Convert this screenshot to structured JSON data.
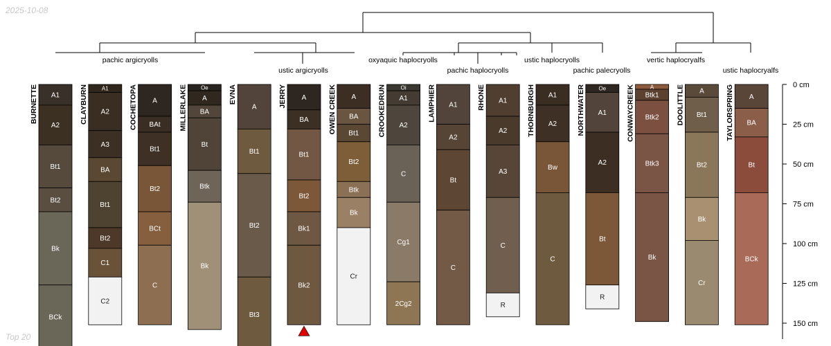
{
  "date": "2025-10-08",
  "footer": "Top 20",
  "depth_axis": {
    "unit": "cm",
    "max": 160,
    "ticks": [
      {
        "value": 0,
        "label": "0 cm"
      },
      {
        "value": 25,
        "label": "25 cm"
      },
      {
        "value": 50,
        "label": "50 cm"
      },
      {
        "value": 75,
        "label": "75 cm"
      },
      {
        "value": 100,
        "label": "100 cm"
      },
      {
        "value": 125,
        "label": "125 cm"
      },
      {
        "value": 150,
        "label": "150 cm"
      }
    ]
  },
  "groups": [
    {
      "label": "pachic argicryolls"
    },
    {
      "label": "ustic argicryolls"
    },
    {
      "label": "oxyaquic haplocryolls"
    },
    {
      "label": "pachic haplocryolls"
    },
    {
      "label": "ustic haplocryolls"
    },
    {
      "label": "pachic palecryolls"
    },
    {
      "label": "vertic haplocryalfs"
    },
    {
      "label": "ustic haplocryalfs"
    }
  ],
  "profiles": [
    {
      "name": "BURNETTE",
      "marker": false,
      "horizons": [
        {
          "name": "A1",
          "top": 0,
          "bottom": 13,
          "color": "#3a302a"
        },
        {
          "name": "A2",
          "top": 13,
          "bottom": 38,
          "color": "#3c3022"
        },
        {
          "name": "Bt1",
          "top": 38,
          "bottom": 65,
          "color": "#564a3c"
        },
        {
          "name": "Bt2",
          "top": 65,
          "bottom": 80,
          "color": "#5a4e40"
        },
        {
          "name": "Bk",
          "top": 80,
          "bottom": 126,
          "color": "#6a6658"
        },
        {
          "name": "BCk",
          "top": 126,
          "bottom": 166,
          "color": "#6a6658"
        }
      ]
    },
    {
      "name": "CLAYBURN",
      "marker": false,
      "horizons": [
        {
          "name": "A1",
          "top": 0,
          "bottom": 5,
          "color": "#30261c"
        },
        {
          "name": "A2",
          "top": 5,
          "bottom": 29,
          "color": "#3a2e22"
        },
        {
          "name": "A3",
          "top": 29,
          "bottom": 46,
          "color": "#3c3024"
        },
        {
          "name": "BA",
          "top": 46,
          "bottom": 61,
          "color": "#5a4832"
        },
        {
          "name": "Bt1",
          "top": 61,
          "bottom": 90,
          "color": "#4e4230"
        },
        {
          "name": "Bt2",
          "top": 90,
          "bottom": 103,
          "color": "#4e3828"
        },
        {
          "name": "C1",
          "top": 103,
          "bottom": 121,
          "color": "#6a5238"
        },
        {
          "name": "C2",
          "top": 121,
          "bottom": 151,
          "color": "#f2f2f2"
        }
      ]
    },
    {
      "name": "COCHETOPA",
      "marker": false,
      "horizons": [
        {
          "name": "A",
          "top": 0,
          "bottom": 20,
          "color": "#2e2620"
        },
        {
          "name": "BAt",
          "top": 20,
          "bottom": 30,
          "color": "#3a2e24"
        },
        {
          "name": "Bt1",
          "top": 30,
          "bottom": 51,
          "color": "#3e3024"
        },
        {
          "name": "Bt2",
          "top": 51,
          "bottom": 80,
          "color": "#7a5638"
        },
        {
          "name": "BCt",
          "top": 80,
          "bottom": 101,
          "color": "#86603e"
        },
        {
          "name": "C",
          "top": 101,
          "bottom": 151,
          "color": "#8e6e50"
        }
      ]
    },
    {
      "name": "MILLERLAKE",
      "marker": false,
      "horizons": [
        {
          "name": "Oe",
          "top": 0,
          "bottom": 4,
          "color": "#2a2420"
        },
        {
          "name": "A",
          "top": 4,
          "bottom": 13,
          "color": "#30281e"
        },
        {
          "name": "BA",
          "top": 13,
          "bottom": 21,
          "color": "#52463a"
        },
        {
          "name": "Bt",
          "top": 21,
          "bottom": 54,
          "color": "#504438"
        },
        {
          "name": "Btk",
          "top": 54,
          "bottom": 74,
          "color": "#6e6458"
        },
        {
          "name": "Bk",
          "top": 74,
          "bottom": 154,
          "color": "#a09078"
        }
      ]
    },
    {
      "name": "EVNA",
      "marker": false,
      "horizons": [
        {
          "name": "A",
          "top": 0,
          "bottom": 28,
          "color": "#52443a"
        },
        {
          "name": "Bt1",
          "top": 28,
          "bottom": 56,
          "color": "#6e5a3e"
        },
        {
          "name": "Bt2",
          "top": 56,
          "bottom": 121,
          "color": "#6a5a4a"
        },
        {
          "name": "Bt3",
          "top": 121,
          "bottom": 168,
          "color": "#6e5a3e"
        }
      ]
    },
    {
      "name": "JERRY",
      "marker": true,
      "horizons": [
        {
          "name": "A",
          "top": 0,
          "bottom": 16,
          "color": "#2e2620"
        },
        {
          "name": "BA",
          "top": 16,
          "bottom": 28,
          "color": "#3c3024"
        },
        {
          "name": "Bt1",
          "top": 28,
          "bottom": 60,
          "color": "#725844"
        },
        {
          "name": "Bt2",
          "top": 60,
          "bottom": 80,
          "color": "#7c5838"
        },
        {
          "name": "Bk1",
          "top": 80,
          "bottom": 101,
          "color": "#6e5844"
        },
        {
          "name": "Bk2",
          "top": 101,
          "bottom": 151,
          "color": "#6e5840"
        }
      ]
    },
    {
      "name": "OWEN CREEK",
      "marker": false,
      "horizons": [
        {
          "name": "A",
          "top": 0,
          "bottom": 15,
          "color": "#3c2e22"
        },
        {
          "name": "BA",
          "top": 15,
          "bottom": 25,
          "color": "#6a5640"
        },
        {
          "name": "Bt1",
          "top": 25,
          "bottom": 36,
          "color": "#5a4834"
        },
        {
          "name": "Bt2",
          "top": 36,
          "bottom": 61,
          "color": "#7e5e38"
        },
        {
          "name": "Btk",
          "top": 61,
          "bottom": 71,
          "color": "#8a7054"
        },
        {
          "name": "Bk",
          "top": 71,
          "bottom": 90,
          "color": "#9a8064"
        },
        {
          "name": "Cr",
          "top": 90,
          "bottom": 151,
          "color": "#f2f2f2"
        }
      ]
    },
    {
      "name": "CROOKEDRUN",
      "marker": false,
      "horizons": [
        {
          "name": "Oi",
          "top": 0,
          "bottom": 4,
          "color": "#3a3630"
        },
        {
          "name": "A1",
          "top": 4,
          "bottom": 13,
          "color": "#443c32"
        },
        {
          "name": "A2",
          "top": 13,
          "bottom": 38,
          "color": "#4e463c"
        },
        {
          "name": "C",
          "top": 38,
          "bottom": 74,
          "color": "#6a6256"
        },
        {
          "name": "Cg1",
          "top": 74,
          "bottom": 124,
          "color": "#8a7a68"
        },
        {
          "name": "2Cg2",
          "top": 124,
          "bottom": 151,
          "color": "#8e7654"
        }
      ]
    },
    {
      "name": "LAMPHIER",
      "marker": false,
      "horizons": [
        {
          "name": "A1",
          "top": 0,
          "bottom": 25,
          "color": "#52443a"
        },
        {
          "name": "A2",
          "top": 25,
          "bottom": 41,
          "color": "#564434"
        },
        {
          "name": "Bt",
          "top": 41,
          "bottom": 79,
          "color": "#5e4634"
        },
        {
          "name": "C",
          "top": 79,
          "bottom": 151,
          "color": "#725a46"
        }
      ]
    },
    {
      "name": "RHONE",
      "marker": false,
      "horizons": [
        {
          "name": "A1",
          "top": 0,
          "bottom": 20,
          "color": "#503e30"
        },
        {
          "name": "A2",
          "top": 20,
          "bottom": 38,
          "color": "#4a3a2c"
        },
        {
          "name": "A3",
          "top": 38,
          "bottom": 71,
          "color": "#574638"
        },
        {
          "name": "C",
          "top": 71,
          "bottom": 131,
          "color": "#705e4e"
        },
        {
          "name": "R",
          "top": 131,
          "bottom": 146,
          "color": "#f2f2f2"
        }
      ]
    },
    {
      "name": "THORNBURGH",
      "marker": false,
      "horizons": [
        {
          "name": "A1",
          "top": 0,
          "bottom": 13,
          "color": "#3a2e22"
        },
        {
          "name": "A2",
          "top": 13,
          "bottom": 36,
          "color": "#3e3024"
        },
        {
          "name": "Bw",
          "top": 36,
          "bottom": 68,
          "color": "#7a5638"
        },
        {
          "name": "C",
          "top": 68,
          "bottom": 151,
          "color": "#6e5a3e"
        }
      ]
    },
    {
      "name": "NORTHWATER",
      "marker": false,
      "horizons": [
        {
          "name": "Oe",
          "top": 0,
          "bottom": 5,
          "color": "#2e2620"
        },
        {
          "name": "A1",
          "top": 5,
          "bottom": 30,
          "color": "#52443a"
        },
        {
          "name": "A2",
          "top": 30,
          "bottom": 68,
          "color": "#3c2e22"
        },
        {
          "name": "Bt",
          "top": 68,
          "bottom": 126,
          "color": "#7c5838"
        },
        {
          "name": "R",
          "top": 126,
          "bottom": 141,
          "color": "#f2f2f2"
        }
      ]
    },
    {
      "name": "CONWAYCREEK",
      "marker": false,
      "horizons": [
        {
          "name": "A",
          "top": 0,
          "bottom": 3,
          "color": "#8e5a3e"
        },
        {
          "name": "Btk1",
          "top": 3,
          "bottom": 10,
          "color": "#5c4030"
        },
        {
          "name": "Btk2",
          "top": 10,
          "bottom": 31,
          "color": "#7c5040"
        },
        {
          "name": "Btk3",
          "top": 31,
          "bottom": 68,
          "color": "#7a5444"
        },
        {
          "name": "Bk",
          "top": 68,
          "bottom": 149,
          "color": "#7a5444"
        }
      ]
    },
    {
      "name": "DOOLITTLE",
      "marker": false,
      "horizons": [
        {
          "name": "A",
          "top": 0,
          "bottom": 8,
          "color": "#5a4a3a"
        },
        {
          "name": "Bt1",
          "top": 8,
          "bottom": 30,
          "color": "#6e5e4a"
        },
        {
          "name": "Bt2",
          "top": 30,
          "bottom": 71,
          "color": "#8a7658"
        },
        {
          "name": "Bk",
          "top": 71,
          "bottom": 98,
          "color": "#a89070"
        },
        {
          "name": "Cr",
          "top": 98,
          "bottom": 151,
          "color": "#9a8a70"
        }
      ]
    },
    {
      "name": "TAYLORSPRING",
      "marker": false,
      "horizons": [
        {
          "name": "A",
          "top": 0,
          "bottom": 15,
          "color": "#5a4638"
        },
        {
          "name": "BA",
          "top": 15,
          "bottom": 33,
          "color": "#8a5e48"
        },
        {
          "name": "Bt",
          "top": 33,
          "bottom": 68,
          "color": "#8c4c3c"
        },
        {
          "name": "BCk",
          "top": 68,
          "bottom": 151,
          "color": "#aa6a58"
        }
      ]
    }
  ],
  "colors": {
    "outline": "#000000",
    "dark_text": "#ffffff",
    "light_text": "#222222",
    "marker": "#e00000",
    "watermark": "#c8c8c8"
  }
}
